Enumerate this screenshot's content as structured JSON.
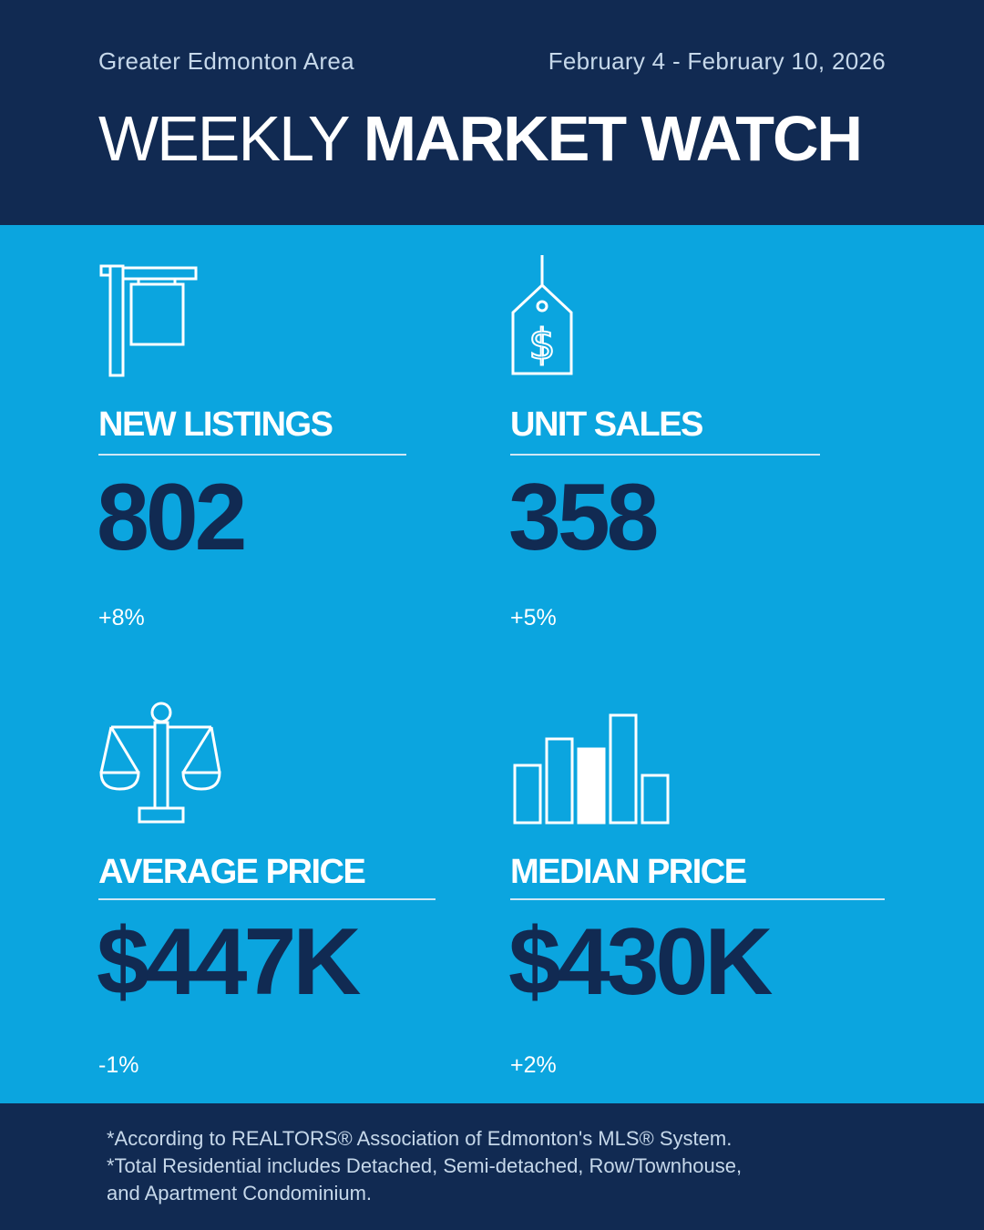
{
  "header": {
    "region": "Greater Edmonton Area",
    "date_range": "February 4 - February 10, 2026",
    "title_light": "WEEKLY",
    "title_bold": "MARKET WATCH"
  },
  "stats": [
    {
      "icon": "for-sale-sign-icon",
      "label": "NEW LISTINGS",
      "value": "802",
      "change": "+8%"
    },
    {
      "icon": "price-tag-icon",
      "label": "UNIT SALES",
      "value": "358",
      "change": "+5%"
    },
    {
      "icon": "balance-scale-icon",
      "label": "AVERAGE PRICE",
      "value": "$447K",
      "change": "-1%"
    },
    {
      "icon": "bar-chart-icon",
      "label": "MEDIAN PRICE",
      "value": "$430K",
      "change": "+2%"
    }
  ],
  "footer": {
    "notes": [
      "*According to REALTORS® Association of Edmonton's MLS® System.",
      "*Total Residential includes Detached, Semi-detached, Row/Townhouse,",
      "and Apartment Condominium."
    ]
  },
  "colors": {
    "navy": "#112a52",
    "sky_blue": "#0ba5df",
    "white": "#ffffff"
  }
}
